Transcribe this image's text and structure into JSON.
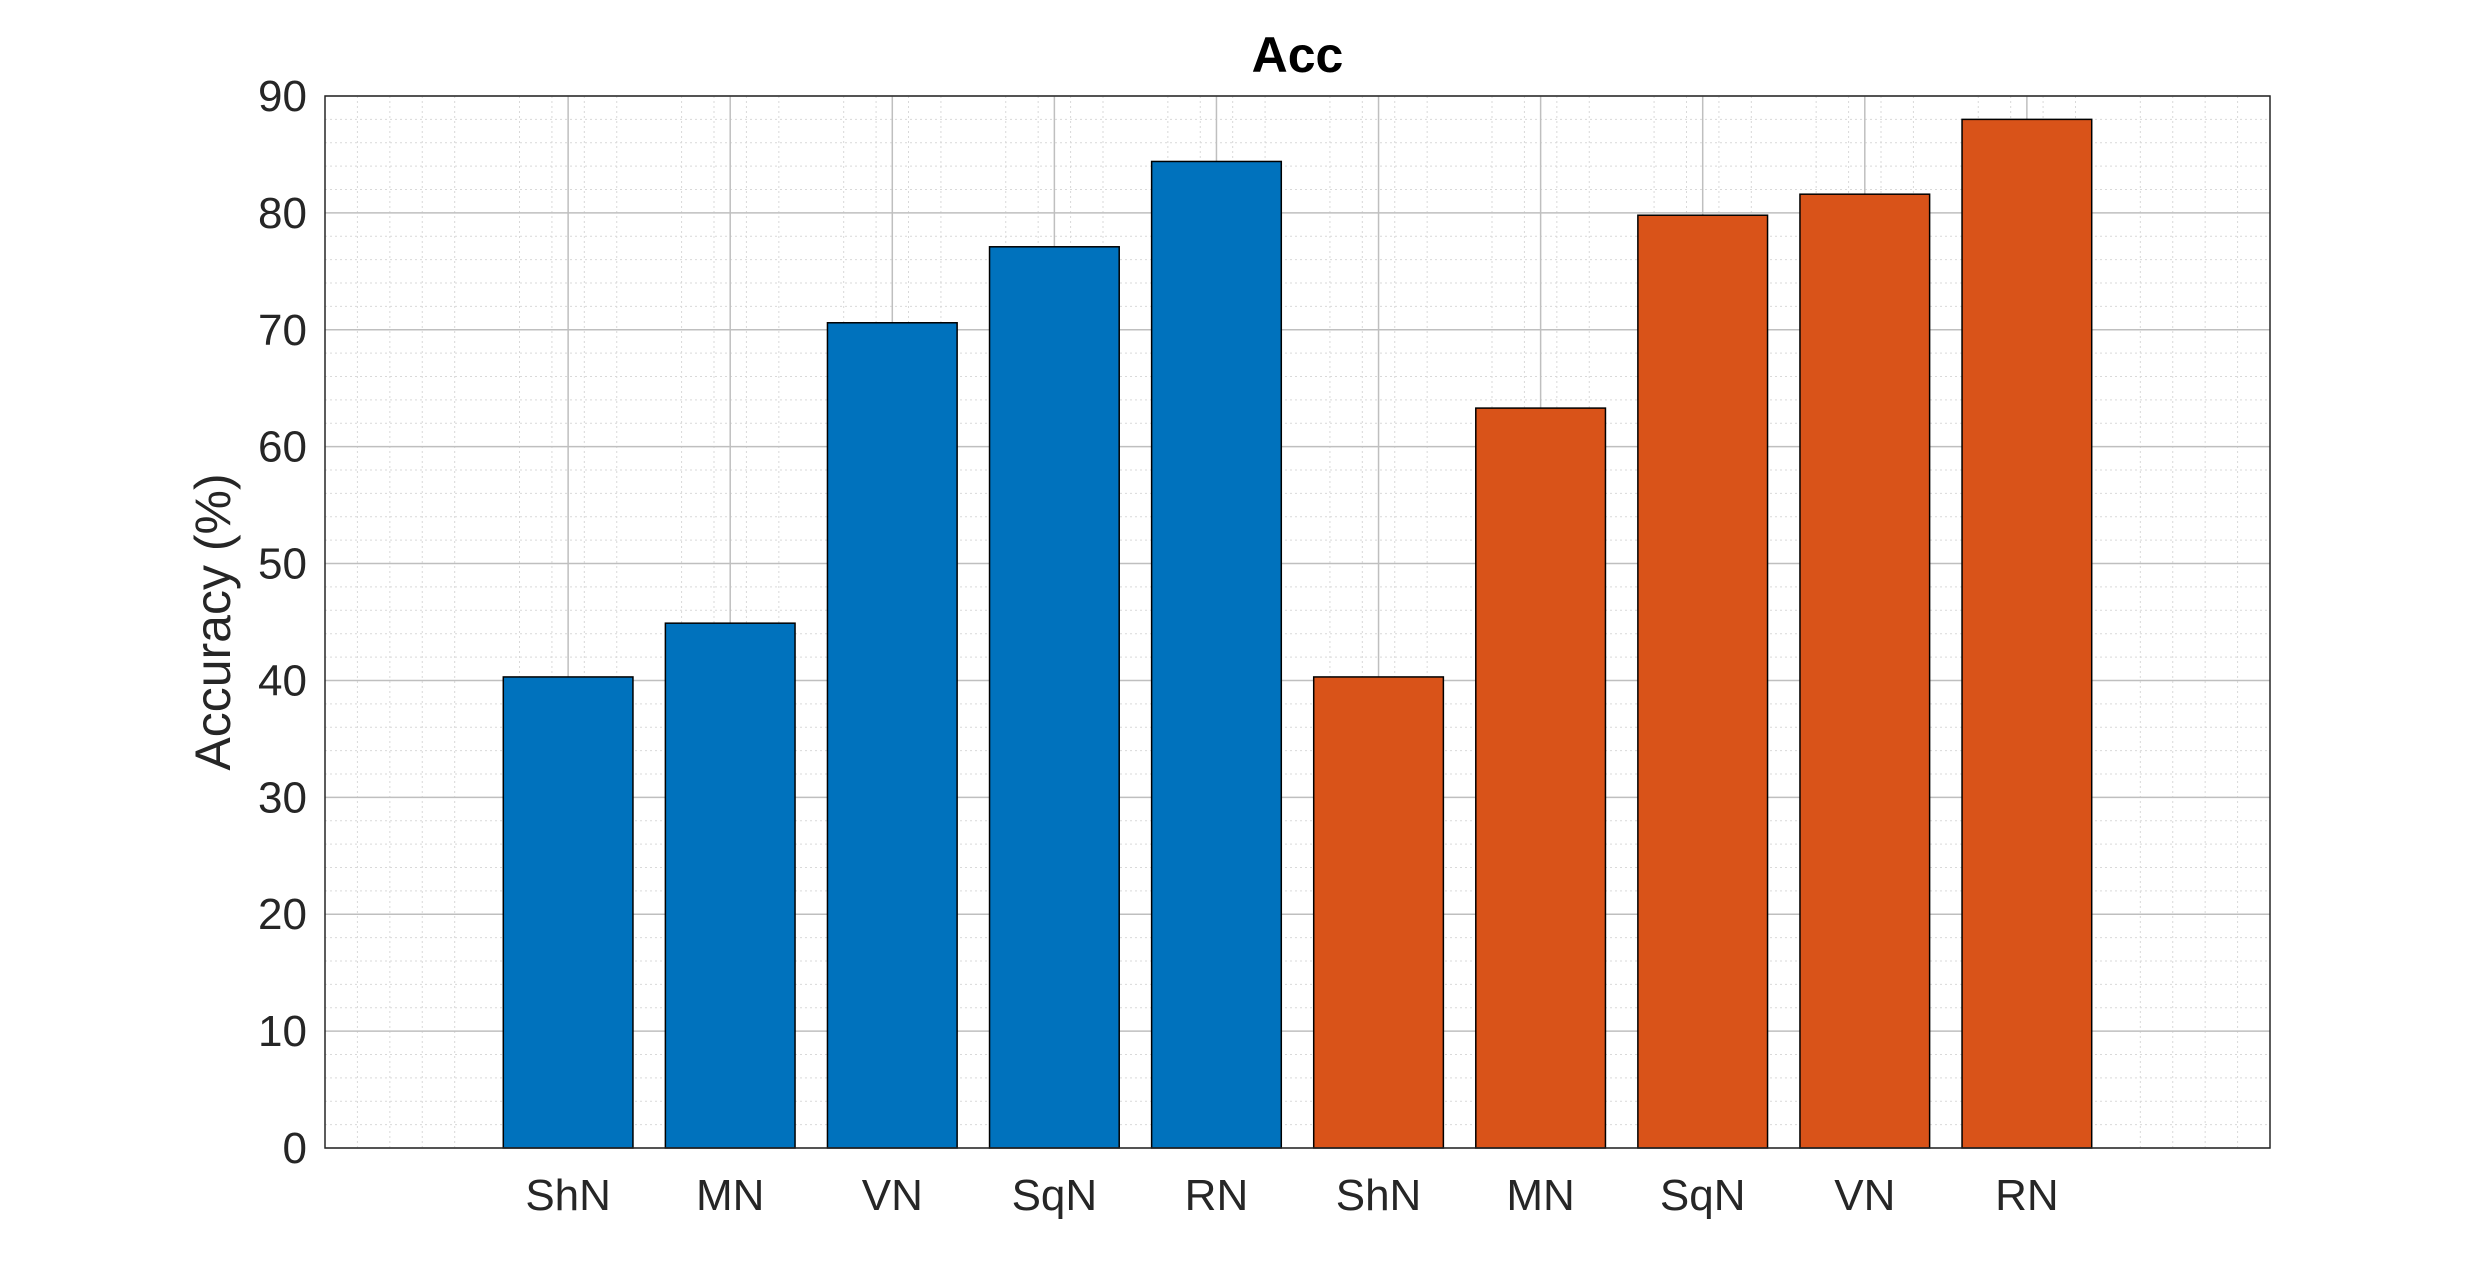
{
  "chart_data": {
    "type": "bar",
    "title": "Acc",
    "xlabel": "",
    "ylabel": "Accuracy (%)",
    "ylim": [
      0,
      90
    ],
    "yticks": [
      0,
      10,
      20,
      30,
      40,
      50,
      60,
      70,
      80,
      90
    ],
    "grid": "major and minor",
    "categories": [
      "ShN",
      "MN",
      "VN",
      "SqN",
      "RN",
      "ShN",
      "MN",
      "SqN",
      "VN",
      "RN"
    ],
    "values": [
      40.3,
      44.9,
      70.6,
      77.1,
      84.4,
      40.3,
      63.3,
      79.8,
      81.6,
      88.0
    ],
    "bar_colors": [
      "#0072BD",
      "#0072BD",
      "#0072BD",
      "#0072BD",
      "#0072BD",
      "#D95319",
      "#D95319",
      "#D95319",
      "#D95319",
      "#D95319"
    ]
  }
}
